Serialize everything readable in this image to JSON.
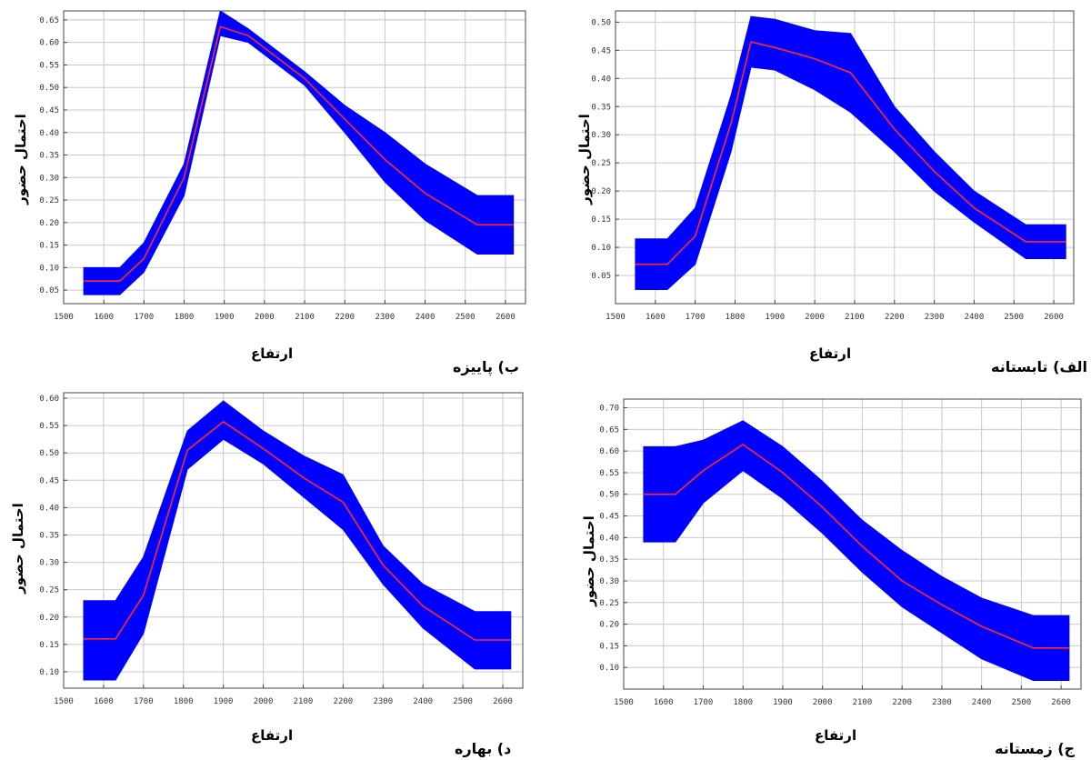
{
  "chart_data": [
    {
      "id": "autumn",
      "type": "area",
      "caption": "ب) پاییزه",
      "xlabel": "ارتفاع",
      "ylabel": "احتمال حضور",
      "xlim": [
        1500,
        2650
      ],
      "ylim": [
        0.02,
        0.67
      ],
      "xticks": [
        1500,
        1600,
        1700,
        1800,
        1900,
        2000,
        2100,
        2200,
        2300,
        2400,
        2500,
        2600
      ],
      "yticks": [
        0.05,
        0.1,
        0.15,
        0.2,
        0.25,
        0.3,
        0.35,
        0.4,
        0.45,
        0.5,
        0.55,
        0.6,
        0.65
      ],
      "grid": true,
      "series": [
        {
          "role": "band",
          "color": "#0000ff",
          "x": [
            1550,
            1640,
            1700,
            1800,
            1890,
            1960,
            2100,
            2200,
            2300,
            2400,
            2530,
            2620
          ],
          "lower": [
            0.04,
            0.04,
            0.09,
            0.26,
            0.615,
            0.6,
            0.505,
            0.4,
            0.29,
            0.205,
            0.13,
            0.13
          ],
          "upper": [
            0.1,
            0.1,
            0.155,
            0.33,
            0.67,
            0.63,
            0.535,
            0.46,
            0.4,
            0.33,
            0.26,
            0.26
          ]
        },
        {
          "role": "mean",
          "color": "#ff2a2a",
          "x": [
            1550,
            1640,
            1700,
            1800,
            1890,
            1960,
            2100,
            2200,
            2300,
            2400,
            2530,
            2620
          ],
          "y": [
            0.07,
            0.07,
            0.12,
            0.3,
            0.635,
            0.615,
            0.52,
            0.43,
            0.34,
            0.265,
            0.195,
            0.195
          ]
        }
      ]
    },
    {
      "id": "summer",
      "type": "area",
      "caption": "الف) تابستانه",
      "xlabel": "ارتفاع",
      "ylabel": "احتمال حضور",
      "xlim": [
        1500,
        2650
      ],
      "ylim": [
        0.0,
        0.52
      ],
      "xticks": [
        1500,
        1600,
        1700,
        1800,
        1900,
        2000,
        2100,
        2200,
        2300,
        2400,
        2500,
        2600
      ],
      "yticks": [
        0.05,
        0.1,
        0.15,
        0.2,
        0.25,
        0.3,
        0.35,
        0.4,
        0.45,
        0.5
      ],
      "grid": true,
      "series": [
        {
          "role": "band",
          "color": "#0000ff",
          "x": [
            1550,
            1630,
            1700,
            1790,
            1840,
            1900,
            2000,
            2090,
            2200,
            2300,
            2400,
            2530,
            2630
          ],
          "lower": [
            0.025,
            0.025,
            0.07,
            0.27,
            0.42,
            0.415,
            0.38,
            0.34,
            0.27,
            0.2,
            0.145,
            0.08,
            0.08
          ],
          "upper": [
            0.115,
            0.115,
            0.17,
            0.37,
            0.51,
            0.505,
            0.485,
            0.48,
            0.35,
            0.27,
            0.2,
            0.14,
            0.14
          ]
        },
        {
          "role": "mean",
          "color": "#ff2a2a",
          "x": [
            1550,
            1630,
            1700,
            1790,
            1840,
            1900,
            2000,
            2090,
            2200,
            2300,
            2400,
            2530,
            2630
          ],
          "y": [
            0.07,
            0.07,
            0.12,
            0.32,
            0.465,
            0.455,
            0.435,
            0.41,
            0.31,
            0.235,
            0.17,
            0.11,
            0.11
          ]
        }
      ]
    },
    {
      "id": "spring",
      "type": "area",
      "caption": "د) بهاره",
      "xlabel": "ارتفاع",
      "ylabel": "احتمال حضور",
      "xlim": [
        1500,
        2650
      ],
      "ylim": [
        0.07,
        0.61
      ],
      "xticks": [
        1500,
        1600,
        1700,
        1800,
        1900,
        2000,
        2100,
        2200,
        2300,
        2400,
        2500,
        2600
      ],
      "yticks": [
        0.1,
        0.15,
        0.2,
        0.25,
        0.3,
        0.35,
        0.4,
        0.45,
        0.5,
        0.55,
        0.6
      ],
      "grid": true,
      "series": [
        {
          "role": "band",
          "color": "#0000ff",
          "x": [
            1550,
            1630,
            1700,
            1810,
            1900,
            2000,
            2100,
            2200,
            2300,
            2400,
            2530,
            2620
          ],
          "lower": [
            0.085,
            0.085,
            0.17,
            0.47,
            0.525,
            0.48,
            0.42,
            0.36,
            0.26,
            0.18,
            0.105,
            0.105
          ],
          "upper": [
            0.23,
            0.23,
            0.31,
            0.54,
            0.595,
            0.54,
            0.495,
            0.46,
            0.33,
            0.26,
            0.21,
            0.21
          ]
        },
        {
          "role": "mean",
          "color": "#ff2a2a",
          "x": [
            1550,
            1630,
            1700,
            1810,
            1900,
            2000,
            2100,
            2200,
            2300,
            2400,
            2530,
            2620
          ],
          "y": [
            0.16,
            0.16,
            0.24,
            0.505,
            0.557,
            0.508,
            0.455,
            0.41,
            0.295,
            0.22,
            0.158,
            0.158
          ]
        }
      ]
    },
    {
      "id": "winter",
      "type": "area",
      "caption": "ج) زمستانه",
      "xlabel": "ارتفاع",
      "ylabel": "احتمال حضور",
      "xlim": [
        1500,
        2650
      ],
      "ylim": [
        0.05,
        0.72
      ],
      "xticks": [
        1500,
        1600,
        1700,
        1800,
        1900,
        2000,
        2100,
        2200,
        2300,
        2400,
        2500,
        2600
      ],
      "yticks": [
        0.1,
        0.15,
        0.2,
        0.25,
        0.3,
        0.35,
        0.4,
        0.45,
        0.5,
        0.55,
        0.6,
        0.65,
        0.7
      ],
      "grid": true,
      "series": [
        {
          "role": "band",
          "color": "#0000ff",
          "x": [
            1550,
            1630,
            1700,
            1800,
            1900,
            2000,
            2100,
            2200,
            2300,
            2400,
            2530,
            2620
          ],
          "lower": [
            0.39,
            0.39,
            0.48,
            0.555,
            0.49,
            0.41,
            0.32,
            0.24,
            0.18,
            0.12,
            0.07,
            0.07
          ],
          "upper": [
            0.61,
            0.61,
            0.625,
            0.67,
            0.61,
            0.53,
            0.44,
            0.37,
            0.31,
            0.26,
            0.22,
            0.22
          ]
        },
        {
          "role": "mean",
          "color": "#ff2a2a",
          "x": [
            1550,
            1630,
            1700,
            1800,
            1900,
            2000,
            2100,
            2200,
            2300,
            2400,
            2530,
            2620
          ],
          "y": [
            0.5,
            0.5,
            0.555,
            0.615,
            0.55,
            0.47,
            0.38,
            0.3,
            0.245,
            0.195,
            0.145,
            0.145
          ]
        }
      ]
    }
  ]
}
